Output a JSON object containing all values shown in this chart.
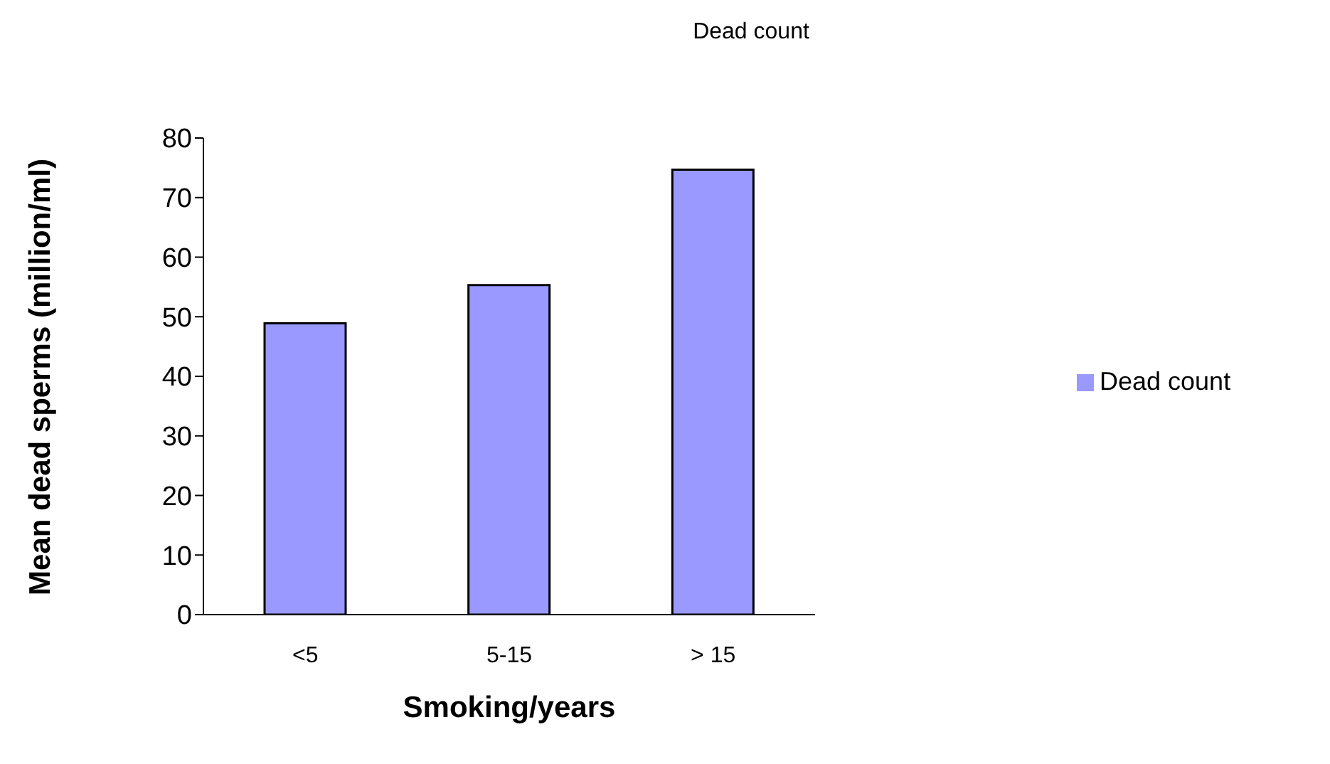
{
  "chart_data": {
    "type": "bar",
    "title": "Dead count",
    "xlabel": "Smoking/years",
    "ylabel": "Mean dead sperms (million/ml)",
    "categories": [
      "<5",
      "5-15",
      "> 15"
    ],
    "series": [
      {
        "name": "Dead count",
        "color": "#9999ff",
        "values": [
          48.9,
          55.3,
          74.7
        ]
      }
    ],
    "ylim": [
      0,
      80
    ],
    "yticks": [
      0,
      10,
      20,
      30,
      40,
      50,
      60,
      70,
      80
    ],
    "grid": false,
    "legend": "right"
  }
}
